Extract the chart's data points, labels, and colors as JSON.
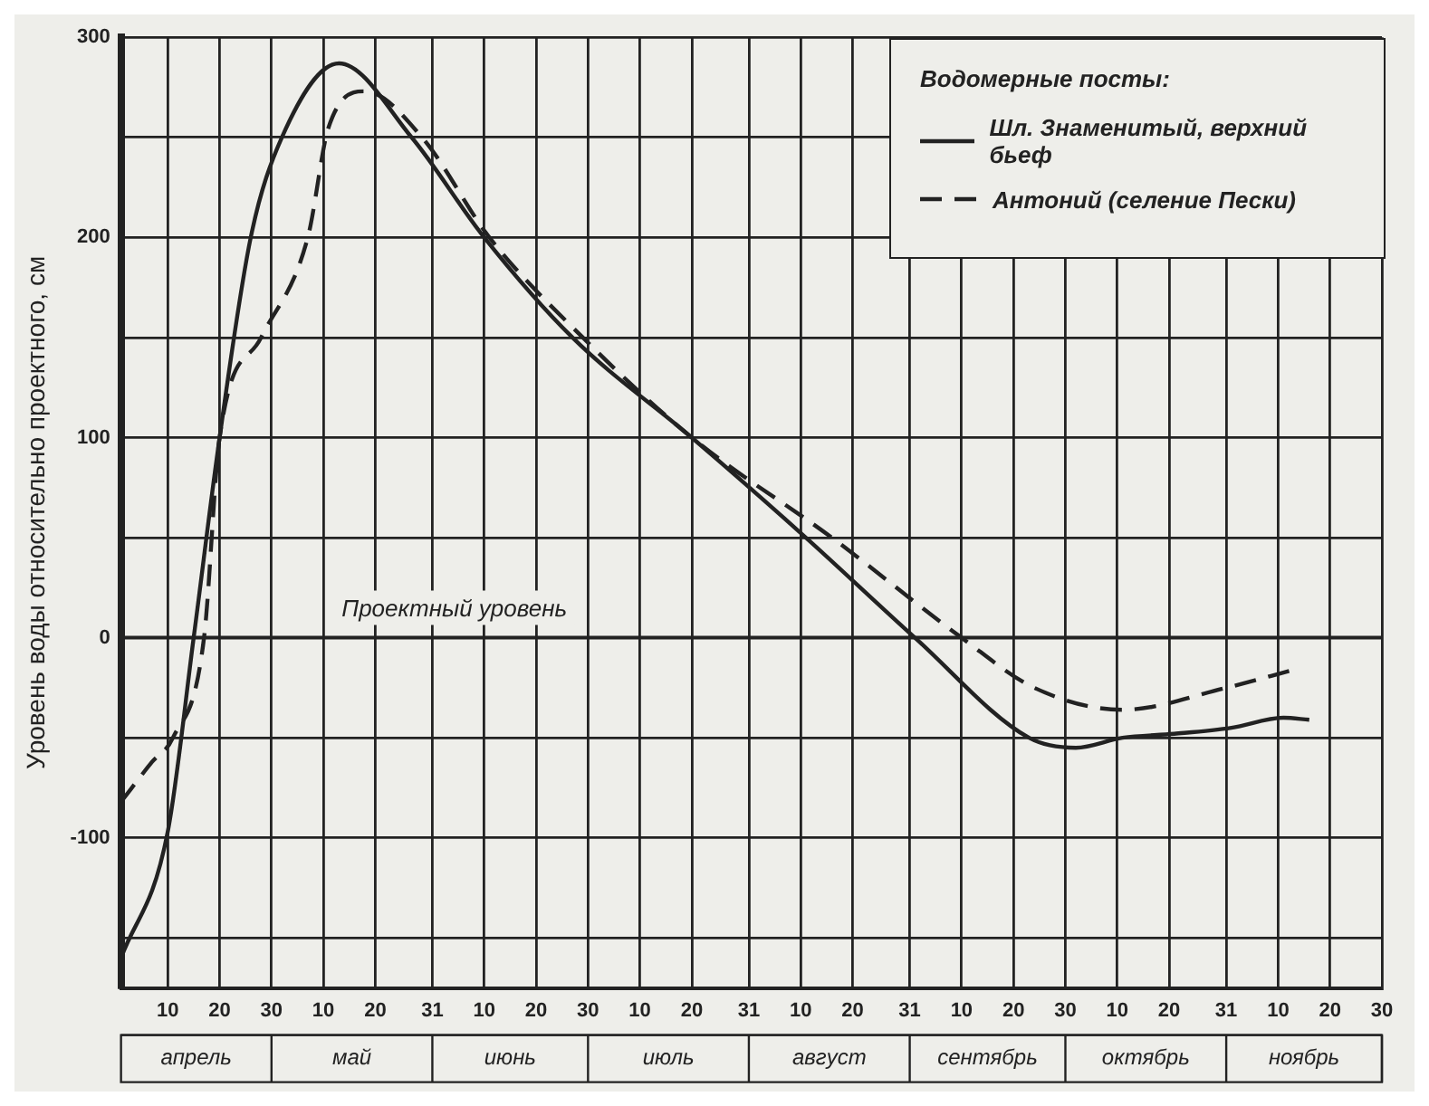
{
  "chart_data": {
    "type": "line",
    "ylabel": "Уровень воды относительно проектного, см",
    "legend_title": "Водомерные посты:",
    "xlim": [
      "--04-01",
      "--11-30"
    ],
    "xticks": [
      {
        "value": "--04-10",
        "label": "10"
      },
      {
        "value": "--04-20",
        "label": "20"
      },
      {
        "value": "--04-30",
        "label": "30"
      },
      {
        "value": "--05-10",
        "label": "10"
      },
      {
        "value": "--05-20",
        "label": "20"
      },
      {
        "value": "--05-31",
        "label": "31"
      },
      {
        "value": "--06-10",
        "label": "10"
      },
      {
        "value": "--06-20",
        "label": "20"
      },
      {
        "value": "--06-30",
        "label": "30"
      },
      {
        "value": "--07-10",
        "label": "10"
      },
      {
        "value": "--07-20",
        "label": "20"
      },
      {
        "value": "--07-31",
        "label": "31"
      },
      {
        "value": "--08-10",
        "label": "10"
      },
      {
        "value": "--08-20",
        "label": "20"
      },
      {
        "value": "--08-31",
        "label": "31"
      },
      {
        "value": "--09-10",
        "label": "10"
      },
      {
        "value": "--09-20",
        "label": "20"
      },
      {
        "value": "--09-30",
        "label": "30"
      },
      {
        "value": "--10-10",
        "label": "10"
      },
      {
        "value": "--10-20",
        "label": "20"
      },
      {
        "value": "--10-31",
        "label": "31"
      },
      {
        "value": "--11-10",
        "label": "10"
      },
      {
        "value": "--11-20",
        "label": "20"
      },
      {
        "value": "--11-30",
        "label": "30"
      }
    ],
    "ylim": [
      -175,
      300
    ],
    "yticks": [
      {
        "value": -150,
        "label": null
      },
      -100,
      {
        "value": -50,
        "label": null
      },
      0,
      {
        "value": 50,
        "label": null
      },
      100,
      {
        "value": 150,
        "label": null
      },
      200,
      {
        "value": 250,
        "label": null
      },
      300
    ],
    "series": [
      {
        "name": "Шл. Знаменитый, верхний бьеф",
        "color": "#222222",
        "line_style": "solid",
        "x": [
          "--04-01",
          "--04-10",
          "--04-15",
          "--04-20",
          "--04-26",
          "--05-02",
          "--05-13",
          "--05-27",
          "--06-10",
          "--06-27",
          "--07-20",
          "--08-11",
          "--09-01",
          "--09-23",
          "--10-02",
          "--10-11",
          "--10-21",
          "--11-01",
          "--11-11",
          "--11-16"
        ],
        "values": [
          -160,
          -97,
          0,
          100,
          200,
          250,
          287,
          250,
          200,
          150,
          100,
          50,
          0,
          -50,
          -55,
          -50,
          -48,
          -45,
          -40,
          -41
        ]
      },
      {
        "name": "Антоний (селение Пески)",
        "color": "#222222",
        "line_style": "dashed",
        "x": [
          "--04-01",
          "--04-07",
          "--04-11",
          "--04-17",
          "--04-20",
          "--04-28",
          "--05-07",
          "--05-11",
          "--05-18",
          "--05-29",
          "--06-11",
          "--06-29",
          "--07-20",
          "--08-16",
          "--09-10",
          "--09-24",
          "--10-11",
          "--10-31",
          "--11-13"
        ],
        "values": [
          -82,
          -62,
          -50,
          0,
          100,
          150,
          200,
          255,
          273,
          250,
          200,
          150,
          100,
          50,
          0,
          -25,
          -36,
          -25,
          -16
        ]
      }
    ],
    "ref_lines": [
      {
        "axis": "y",
        "value": 0,
        "label": "Проектный уровень",
        "color": "#222222"
      }
    ],
    "annotations": [
      "апрель",
      "май",
      "июнь",
      "июль",
      "август",
      "сентябрь",
      "октябрь",
      "ноябрь"
    ],
    "grid": true,
    "legend": "top right",
    "marker": "none"
  }
}
